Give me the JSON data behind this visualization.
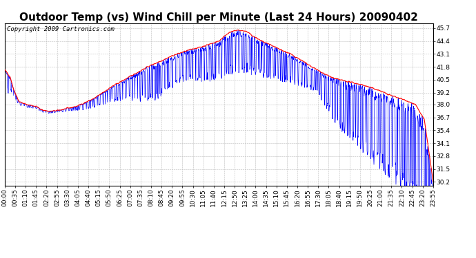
{
  "title": "Outdoor Temp (vs) Wind Chill per Minute (Last 24 Hours) 20090402",
  "copyright_text": "Copyright 2009 Cartronics.com",
  "y_ticks": [
    30.2,
    31.5,
    32.8,
    34.1,
    35.4,
    36.7,
    38.0,
    39.2,
    40.5,
    41.8,
    43.1,
    44.4,
    45.7
  ],
  "ylim": [
    29.8,
    46.2
  ],
  "x_tick_labels": [
    "00:00",
    "00:35",
    "01:10",
    "01:45",
    "02:20",
    "02:55",
    "03:30",
    "04:05",
    "04:40",
    "05:15",
    "05:50",
    "06:25",
    "07:00",
    "07:35",
    "08:10",
    "08:45",
    "09:20",
    "09:55",
    "10:30",
    "11:05",
    "11:40",
    "12:15",
    "12:50",
    "13:25",
    "14:00",
    "14:35",
    "15:10",
    "15:45",
    "16:20",
    "16:55",
    "17:30",
    "18:05",
    "18:40",
    "19:15",
    "19:50",
    "20:25",
    "21:00",
    "21:35",
    "22:10",
    "22:45",
    "23:20",
    "23:55"
  ],
  "outdoor_color": "#ff0000",
  "windchill_color": "#0000ff",
  "background_color": "#ffffff",
  "grid_color": "#bbbbbb",
  "title_fontsize": 11,
  "tick_fontsize": 6.5,
  "copyright_fontsize": 6.5
}
